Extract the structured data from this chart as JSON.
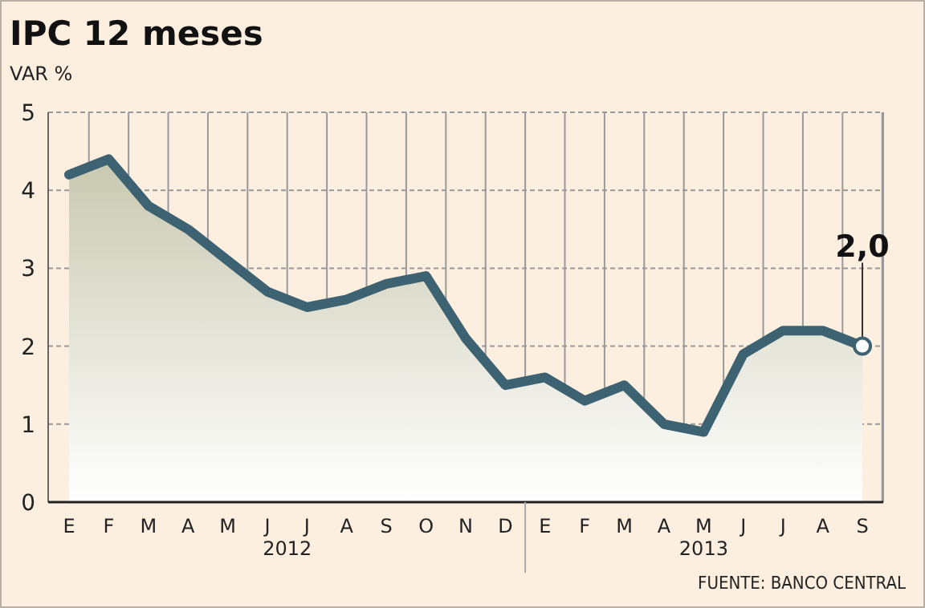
{
  "chart_data": {
    "type": "area",
    "title": "IPC 12 meses",
    "ylabel": "VAR %",
    "categories": [
      "E",
      "F",
      "M",
      "A",
      "M",
      "J",
      "J",
      "A",
      "S",
      "O",
      "N",
      "D",
      "E",
      "F",
      "M",
      "A",
      "M",
      "J",
      "J",
      "A",
      "S"
    ],
    "series": [
      {
        "color": "#3d6272",
        "values": [
          4.2,
          4.4,
          3.8,
          3.5,
          3.1,
          2.7,
          2.5,
          2.6,
          2.8,
          2.9,
          2.1,
          1.5,
          1.6,
          1.3,
          1.5,
          1.0,
          0.9,
          1.9,
          2.2,
          2.2,
          2.0
        ]
      }
    ],
    "ylim": [
      0,
      5
    ],
    "yticks": [
      0,
      1,
      2,
      3,
      4,
      5
    ],
    "grid": true,
    "marker": "none",
    "line_style": "solid",
    "annotations": [
      "2012",
      "2013",
      {
        "text": "2,0",
        "y": 2.0
      },
      "FUENTE: BANCO CENTRAL"
    ]
  }
}
